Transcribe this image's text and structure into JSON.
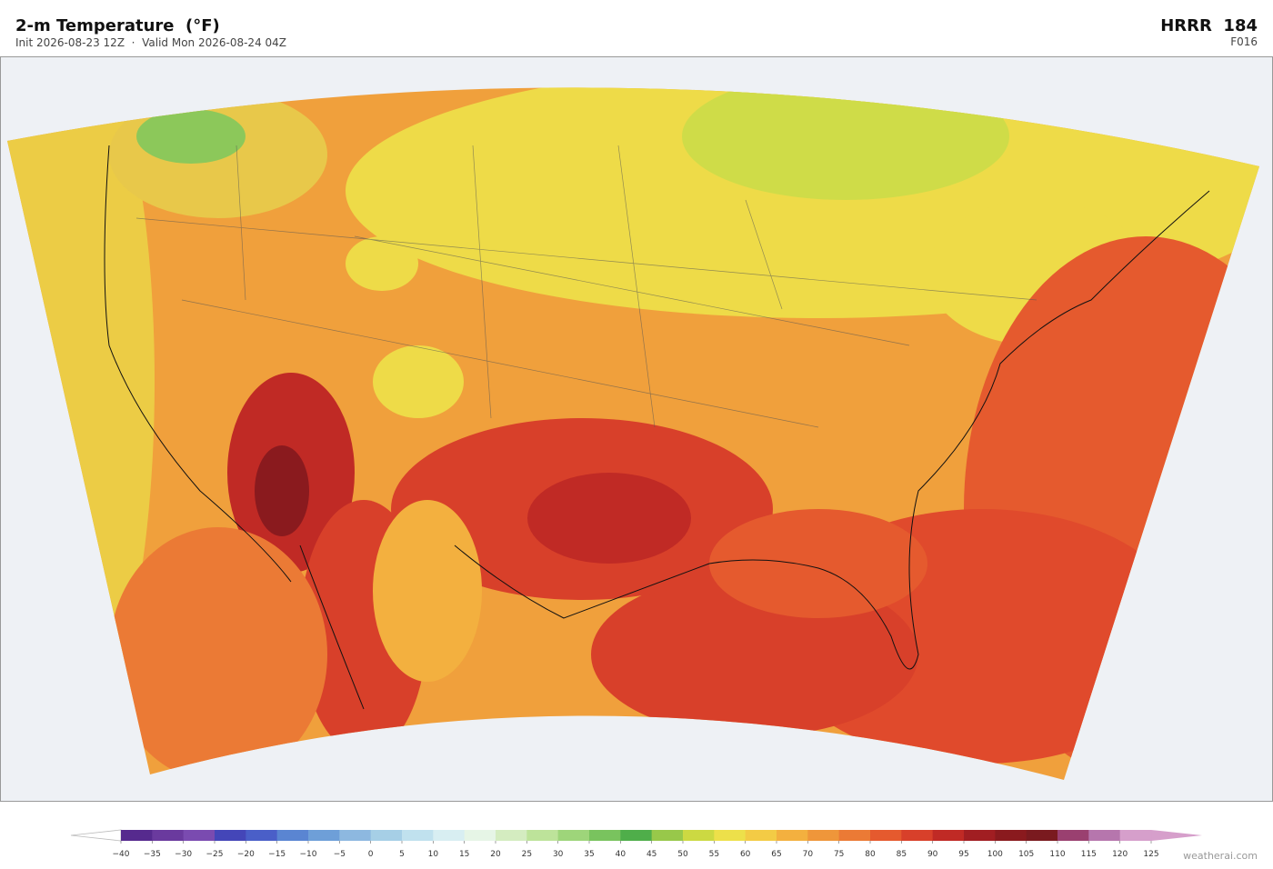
{
  "header": {
    "title": "2-m Temperature  (°F)",
    "subtitle": "Init 2026-08-23 12Z  ·  Valid Mon 2026-08-24 04Z",
    "model": "HRRR  184",
    "forecast_hour": "F016"
  },
  "colorbar": {
    "ticks": [
      {
        "value": -40,
        "label": "−40"
      },
      {
        "value": -35,
        "label": "−35"
      },
      {
        "value": -30,
        "label": "−30"
      },
      {
        "value": -25,
        "label": "−25"
      },
      {
        "value": -20,
        "label": "−20"
      },
      {
        "value": -15,
        "label": "−15"
      },
      {
        "value": -10,
        "label": "−10"
      },
      {
        "value": -5,
        "label": "−5"
      },
      0,
      5,
      10,
      15,
      20,
      25,
      30,
      35,
      40,
      45,
      50,
      55,
      60,
      65,
      70,
      75,
      80,
      85,
      90,
      95,
      100,
      105,
      110,
      115,
      120,
      125
    ],
    "colors": [
      "#562a8e",
      "#6a3a9e",
      "#7a4bb0",
      "#4446b8",
      "#4a5fc8",
      "#5a85d2",
      "#6e9fd8",
      "#8db8e0",
      "#a6cfe6",
      "#c0e1ee",
      "#d8eef2",
      "#e6f5e6",
      "#d4ecc0",
      "#bde39a",
      "#9ed57a",
      "#79c35e",
      "#4fae4a",
      "#98c84a",
      "#ccd942",
      "#ede04a",
      "#f3cb45",
      "#f3b03f",
      "#ef963a",
      "#eb7a35",
      "#e55a2e",
      "#d8402a",
      "#c02a25",
      "#a11e22",
      "#8a1a1e",
      "#7a1a1f",
      "#9a4070",
      "#b676ad",
      "#d69fcb"
    ]
  },
  "footer": "weatherai.com"
}
